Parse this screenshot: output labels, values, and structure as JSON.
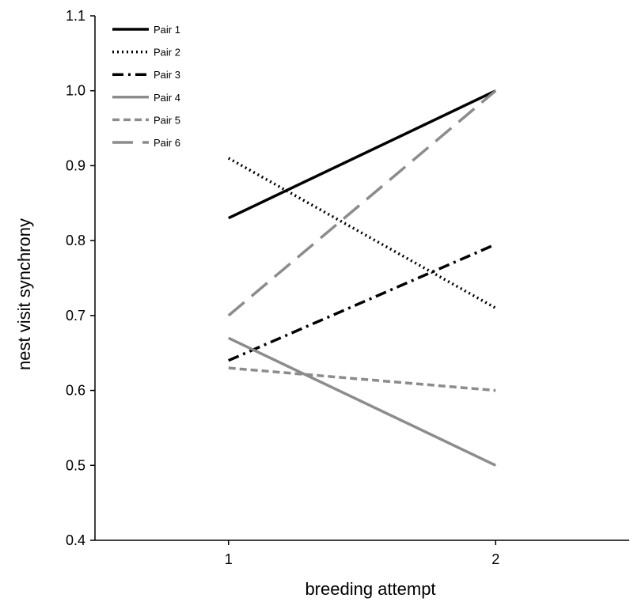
{
  "chart_data": {
    "type": "line",
    "xlabel": "breeding attempt",
    "ylabel": "nest visit synchrony",
    "x": [
      1,
      2
    ],
    "x_ticks": [
      "1",
      "2"
    ],
    "xlim": [
      0.5,
      2.5
    ],
    "ylim": [
      0.4,
      1.1
    ],
    "y_ticks": [
      "0.4",
      "0.5",
      "0.6",
      "0.7",
      "0.8",
      "0.9",
      "1.0",
      "1.1"
    ],
    "grid": false,
    "legend_position": "top-left",
    "series": [
      {
        "name": "Pair 1",
        "values": [
          0.83,
          1.0
        ],
        "color": "#000000",
        "style": "solid"
      },
      {
        "name": "Pair 2",
        "values": [
          0.91,
          0.71
        ],
        "color": "#000000",
        "style": "dotted"
      },
      {
        "name": "Pair 3",
        "values": [
          0.64,
          0.795
        ],
        "color": "#000000",
        "style": "dashdot"
      },
      {
        "name": "Pair 4",
        "values": [
          0.67,
          0.5
        ],
        "color": "#8c8c8c",
        "style": "solid"
      },
      {
        "name": "Pair 5",
        "values": [
          0.63,
          0.6
        ],
        "color": "#8c8c8c",
        "style": "dashed"
      },
      {
        "name": "Pair 6",
        "values": [
          0.7,
          1.0
        ],
        "color": "#8c8c8c",
        "style": "longdash"
      }
    ]
  }
}
